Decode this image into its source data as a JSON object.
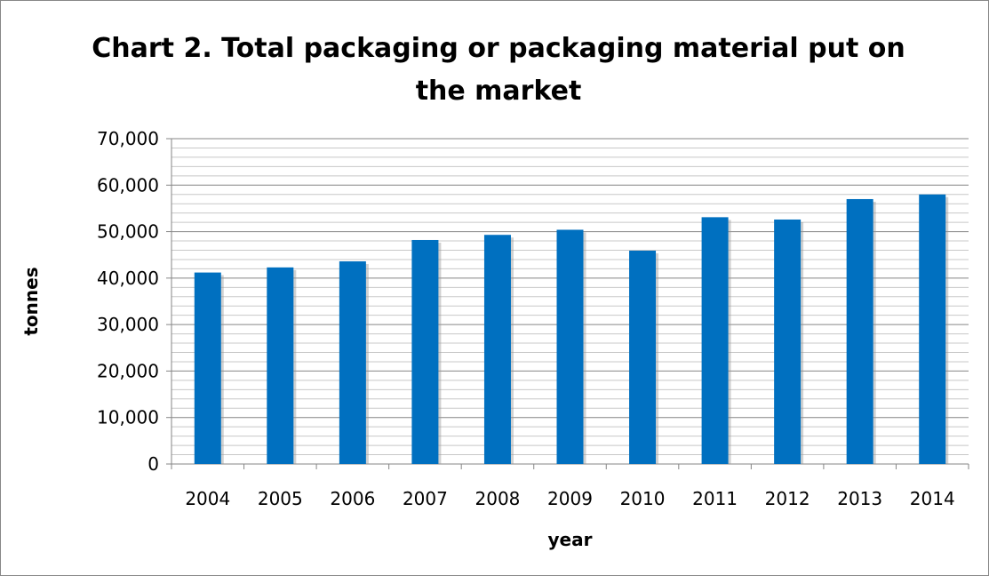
{
  "chart_data": {
    "type": "bar",
    "title": "Chart 2. Total packaging or packaging material put on the market",
    "xlabel": "year",
    "ylabel": "tonnes",
    "categories": [
      "2004",
      "2005",
      "2006",
      "2007",
      "2008",
      "2009",
      "2010",
      "2011",
      "2012",
      "2013",
      "2014"
    ],
    "values": [
      41200,
      42300,
      43600,
      48200,
      49300,
      50400,
      45900,
      53100,
      52600,
      57000,
      58000
    ],
    "ylim": [
      0,
      70000
    ],
    "y_ticks": [
      "0",
      "10,000",
      "20,000",
      "30,000",
      "40,000",
      "50,000",
      "60,000",
      "70,000"
    ],
    "minor_grid_step": 2000,
    "grid": true,
    "legend": "none",
    "bar_color": "#0070C0"
  }
}
